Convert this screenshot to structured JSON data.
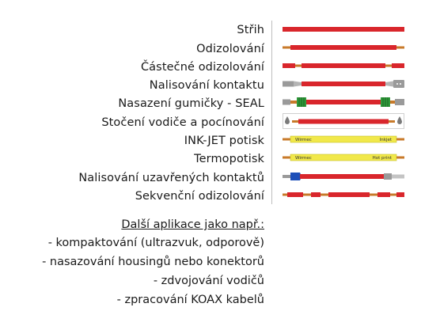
{
  "operations": [
    {
      "label": "Střih"
    },
    {
      "label": "Odizolování"
    },
    {
      "label": "Částečné odizolování"
    },
    {
      "label": "Nalisování kontaktu"
    },
    {
      "label": "Nasazení gumičky - SEAL"
    },
    {
      "label": "Stočení vodiče a pocínování"
    },
    {
      "label": "INK-JET potisk",
      "print_left": "Wirmec",
      "print_right": "Inkjet"
    },
    {
      "label": "Termopotisk",
      "print_left": "Wirmec",
      "print_right": "Hot print"
    },
    {
      "label": "Nalisování uzavřených kontaktů"
    },
    {
      "label": "Sekvenční odizolování"
    }
  ],
  "applications": {
    "heading": "Další aplikace jako např.:",
    "items": [
      "- kompaktování (ultrazvuk, odporově)",
      "- nasazování housingů nebo konektorů",
      "- zdvojování vodičů",
      "- zpracování KOAX kabelů"
    ]
  },
  "colors": {
    "wire_red": "#d9262c",
    "copper": "#c87a2a",
    "contact_grey": "#9a9a9a",
    "seal_green": "#2f9a3a",
    "print_yellow": "#f1e84a",
    "closed_contact_blue": "#1d4fb8"
  },
  "icons": {
    "operation_glyph": "wire-process-icon",
    "tin_drop": "tin-drop-icon"
  }
}
